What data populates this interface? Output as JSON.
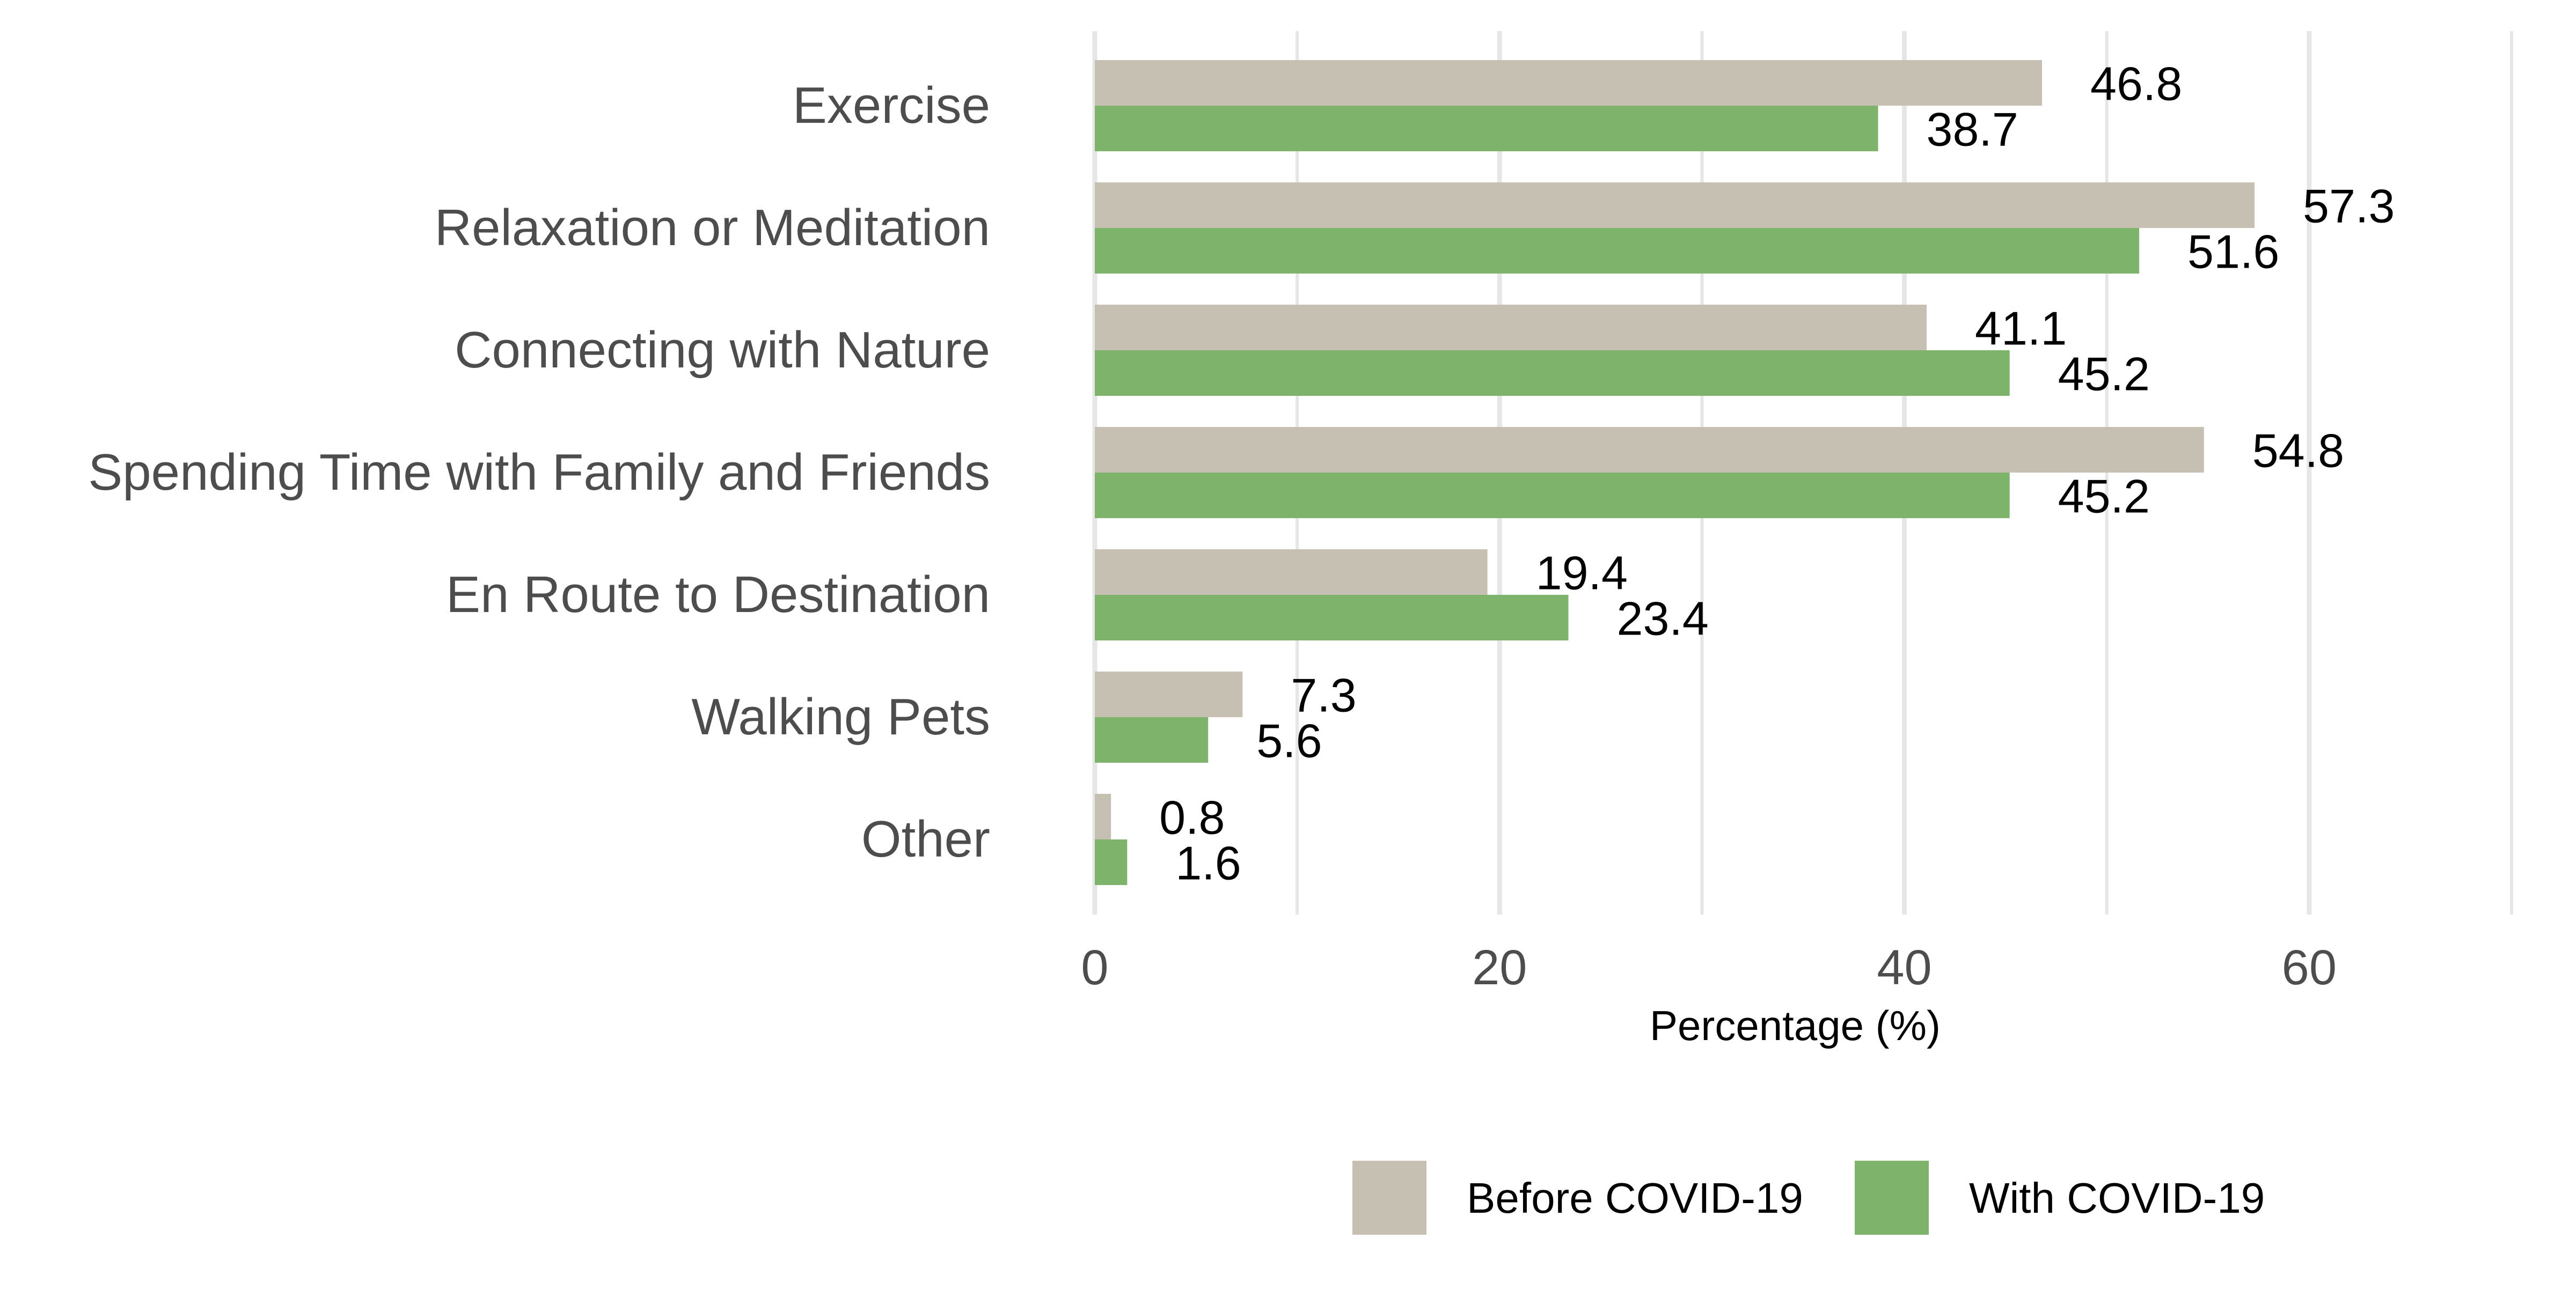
{
  "chart_data": {
    "type": "bar",
    "orientation": "horizontal",
    "categories": [
      "Exercise",
      "Relaxation or Meditation",
      "Connecting with Nature",
      "Spending Time with Family and Friends",
      "En Route to Destination",
      "Walking Pets",
      "Other"
    ],
    "series": [
      {
        "name": "Before COVID-19",
        "color": "#c6c0b3",
        "values": [
          46.8,
          57.3,
          41.1,
          54.8,
          19.4,
          7.3,
          0.8
        ]
      },
      {
        "name": "With COVID-19",
        "color": "#7db36a",
        "values": [
          38.7,
          51.6,
          45.2,
          45.2,
          23.4,
          5.6,
          1.6
        ]
      }
    ],
    "value_labels": [
      [
        "46.8",
        "57.3",
        "41.1",
        "54.8",
        "19.4",
        "7.3",
        "0.8"
      ],
      [
        "38.7",
        "51.6",
        "45.2",
        "45.2",
        "23.4",
        "5.6",
        "1.6"
      ]
    ],
    "x_ticks": [
      "0",
      "20",
      "40",
      "60"
    ],
    "xlabel": "Percentage (%)",
    "ylabel": "",
    "title": "",
    "xlim": [
      0,
      70
    ],
    "grid": "vertical",
    "legend_position": "bottom"
  }
}
